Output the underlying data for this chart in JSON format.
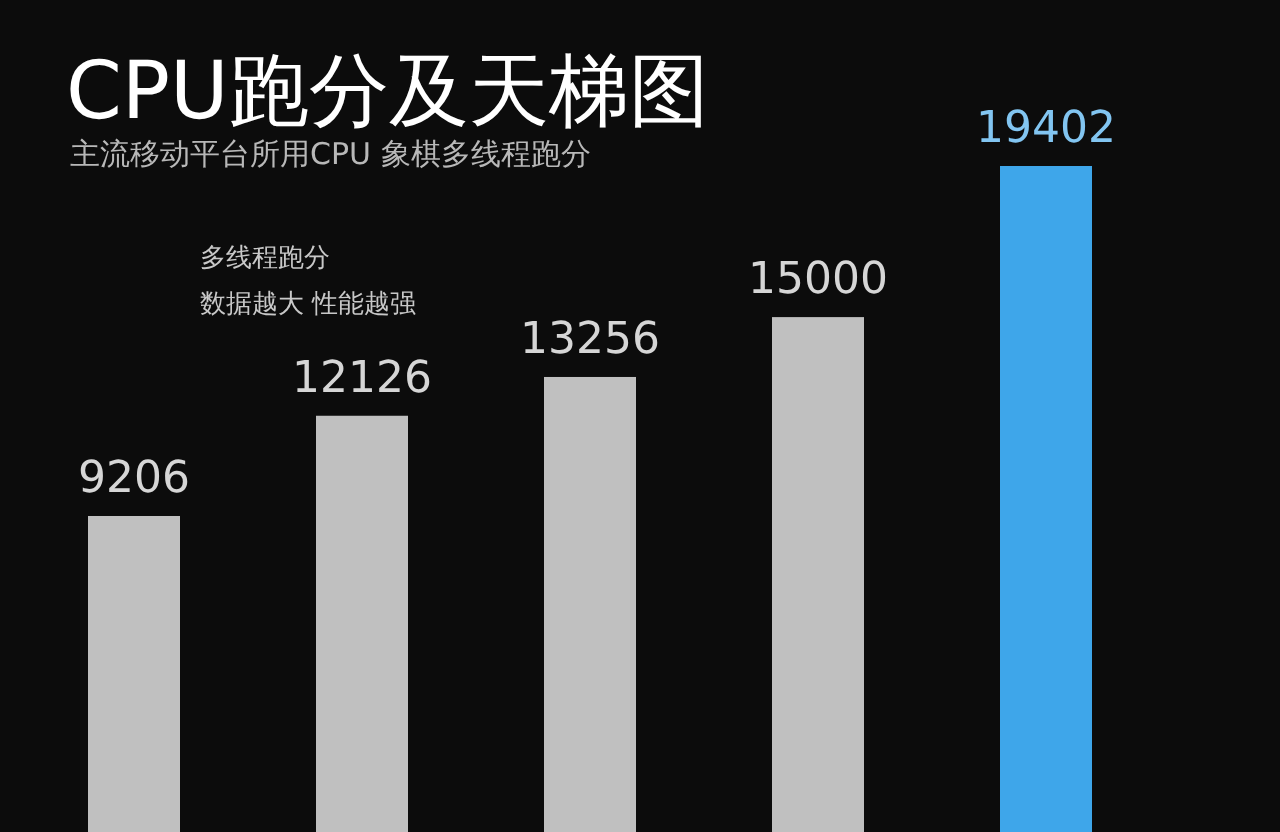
{
  "chart_data": {
    "type": "bar",
    "title": "CPU跑分及天梯图",
    "subtitle": "主流移动平台所用CPU 象棋多线程跑分",
    "annotations": [
      "多线程跑分",
      "数据越大 性能越强"
    ],
    "categories": [
      null,
      null,
      null,
      null,
      null
    ],
    "values": [
      9206,
      12126,
      13256,
      15000,
      19402
    ],
    "colors": [
      "#c0c0c0",
      "#c0c0c0",
      "#c0c0c0",
      "#c0c0c0",
      "#3ea6ea"
    ],
    "data_labels": true
  }
}
